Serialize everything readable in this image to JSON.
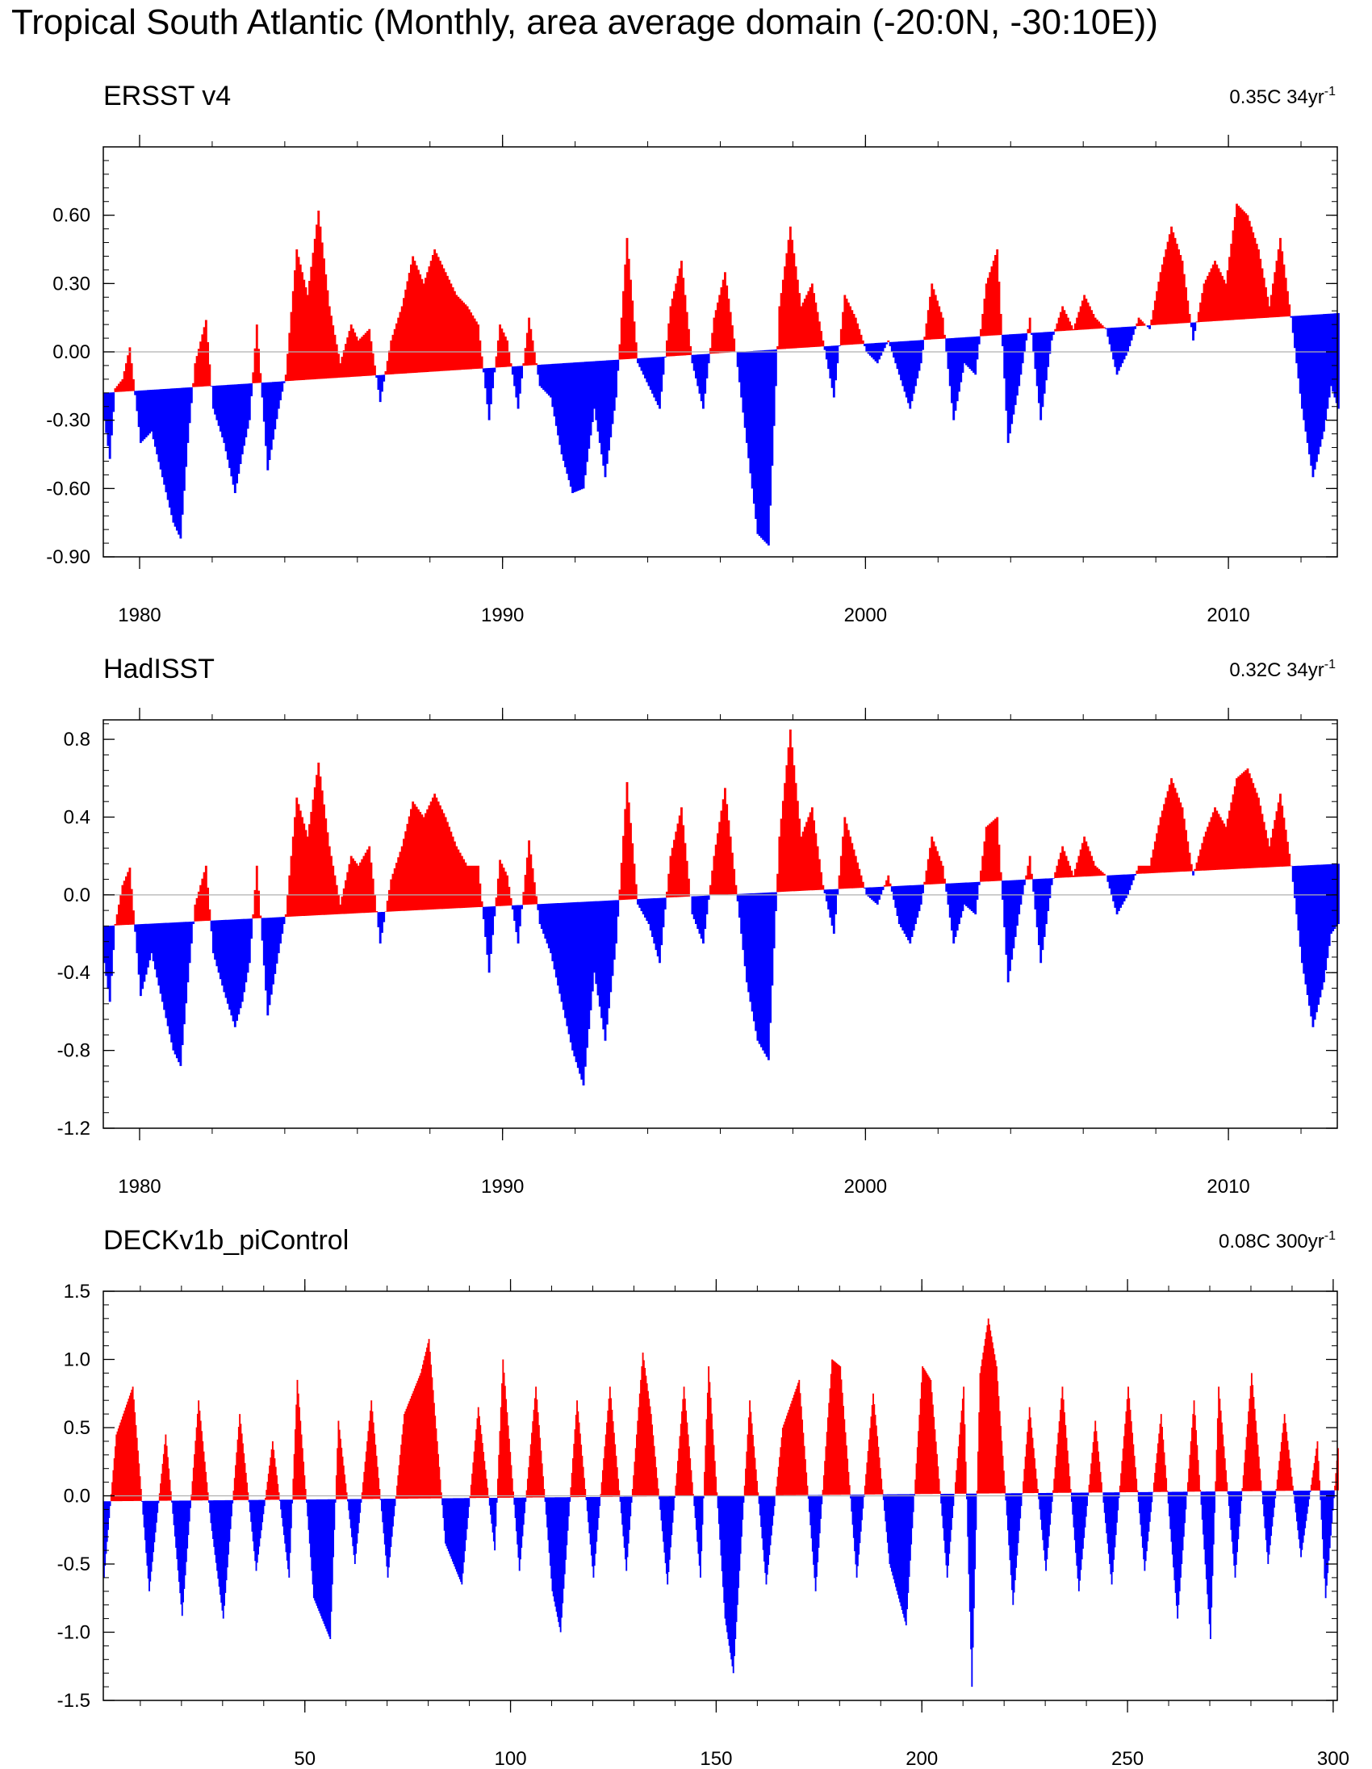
{
  "figure": {
    "title": "Tropical South Atlantic (Monthly, area average domain (-20:0N, -30:10E))",
    "positive_color": "#ff0000",
    "negative_color": "#0000ff",
    "zero_line_color": "#b0b0b0"
  },
  "chart_data": [
    {
      "type": "area",
      "title": "ERSST v4",
      "trend_value": "0.35C",
      "trend_period": "34yr",
      "trend_exponent": "-1",
      "xlim": [
        1979.0,
        2013.0
      ],
      "ylim": [
        -0.9,
        0.9
      ],
      "x_ticks": [
        1980,
        1990,
        2000,
        2010
      ],
      "x_tick_labels": [
        "1980",
        "1990",
        "2000",
        "2010"
      ],
      "y_ticks": [
        0.6,
        0.3,
        0.0,
        -0.3,
        -0.6,
        -0.9
      ],
      "y_tick_labels": [
        "0.60",
        "0.30",
        "0.00",
        "-0.30",
        "-0.60",
        "-0.90"
      ],
      "trend_line": {
        "x": [
          1979.0,
          2013.0
        ],
        "y": [
          -0.18,
          0.17
        ]
      },
      "series": {
        "x": [
          1979.0,
          1979.15,
          1979.3,
          1979.5,
          1979.7,
          1980.0,
          1980.3,
          1980.6,
          1980.9,
          1981.1,
          1981.3,
          1981.5,
          1981.8,
          1982.0,
          1982.3,
          1982.6,
          1982.8,
          1983.0,
          1983.2,
          1983.5,
          1983.8,
          1984.0,
          1984.3,
          1984.6,
          1984.9,
          1985.2,
          1985.5,
          1985.8,
          1986.0,
          1986.3,
          1986.6,
          1986.9,
          1987.2,
          1987.5,
          1987.8,
          1988.1,
          1988.4,
          1988.7,
          1989.0,
          1989.3,
          1989.6,
          1989.9,
          1990.1,
          1990.4,
          1990.7,
          1991.0,
          1991.3,
          1991.6,
          1991.9,
          1992.2,
          1992.5,
          1992.8,
          1993.1,
          1993.4,
          1993.7,
          1994.0,
          1994.3,
          1994.6,
          1994.9,
          1995.2,
          1995.5,
          1995.8,
          1996.1,
          1996.4,
          1996.7,
          1997.0,
          1997.3,
          1997.6,
          1997.9,
          1998.2,
          1998.5,
          1998.8,
          1999.1,
          1999.4,
          1999.7,
          2000.0,
          2000.3,
          2000.6,
          2000.9,
          2001.2,
          2001.5,
          2001.8,
          2002.1,
          2002.4,
          2002.7,
          2003.0,
          2003.3,
          2003.6,
          2003.9,
          2004.2,
          2004.5,
          2004.8,
          2005.1,
          2005.4,
          2005.7,
          2006.0,
          2006.3,
          2006.6,
          2006.9,
          2007.2,
          2007.5,
          2007.8,
          2008.1,
          2008.4,
          2008.7,
          2009.0,
          2009.3,
          2009.6,
          2009.9,
          2010.2,
          2010.5,
          2010.8,
          2011.1,
          2011.4,
          2011.7,
          2012.0,
          2012.3,
          2012.6,
          2012.8,
          2013.0
        ],
        "y": [
          -0.3,
          -0.47,
          -0.16,
          -0.12,
          0.02,
          -0.4,
          -0.35,
          -0.55,
          -0.75,
          -0.82,
          -0.4,
          -0.05,
          0.14,
          -0.25,
          -0.4,
          -0.62,
          -0.45,
          -0.3,
          0.12,
          -0.52,
          -0.25,
          -0.1,
          0.45,
          0.25,
          0.62,
          0.2,
          -0.05,
          0.12,
          0.05,
          0.1,
          -0.22,
          0.05,
          0.2,
          0.42,
          0.3,
          0.45,
          0.35,
          0.25,
          0.2,
          0.12,
          -0.3,
          0.12,
          0.05,
          -0.25,
          0.15,
          -0.15,
          -0.2,
          -0.45,
          -0.62,
          -0.6,
          -0.25,
          -0.55,
          -0.2,
          0.5,
          -0.05,
          -0.15,
          -0.25,
          0.2,
          0.4,
          -0.05,
          -0.25,
          0.15,
          0.35,
          0.0,
          -0.4,
          -0.8,
          -0.85,
          0.2,
          0.55,
          0.2,
          0.3,
          0.05,
          -0.2,
          0.25,
          0.15,
          0.0,
          -0.05,
          0.05,
          -0.1,
          -0.25,
          -0.05,
          0.3,
          0.15,
          -0.3,
          -0.05,
          -0.1,
          0.3,
          0.45,
          -0.4,
          -0.15,
          0.15,
          -0.3,
          0.05,
          0.2,
          0.1,
          0.25,
          0.15,
          0.1,
          -0.1,
          0.0,
          0.15,
          0.1,
          0.35,
          0.55,
          0.4,
          0.05,
          0.3,
          0.4,
          0.3,
          0.65,
          0.6,
          0.45,
          0.2,
          0.5,
          0.15,
          -0.25,
          -0.55,
          -0.35,
          -0.15,
          -0.25
        ]
      }
    },
    {
      "type": "area",
      "title": "HadISST",
      "trend_value": "0.32C",
      "trend_period": "34yr",
      "trend_exponent": "-1",
      "xlim": [
        1979.0,
        2013.0
      ],
      "ylim": [
        -1.2,
        0.9
      ],
      "x_ticks": [
        1980,
        1990,
        2000,
        2010
      ],
      "x_tick_labels": [
        "1980",
        "1990",
        "2000",
        "2010"
      ],
      "y_ticks": [
        0.8,
        0.4,
        0.0,
        -0.4,
        -0.8,
        -1.2
      ],
      "y_tick_labels": [
        "0.8",
        "0.4",
        "0.0",
        "-0.4",
        "-0.8",
        "-1.2"
      ],
      "trend_line": {
        "x": [
          1979.0,
          2013.0
        ],
        "y": [
          -0.16,
          0.16
        ]
      },
      "series": {
        "x": [
          1979.0,
          1979.15,
          1979.3,
          1979.5,
          1979.7,
          1980.0,
          1980.3,
          1980.6,
          1980.9,
          1981.1,
          1981.3,
          1981.5,
          1981.8,
          1982.0,
          1982.3,
          1982.6,
          1982.8,
          1983.0,
          1983.2,
          1983.5,
          1983.8,
          1984.0,
          1984.3,
          1984.6,
          1984.9,
          1985.2,
          1985.5,
          1985.8,
          1986.0,
          1986.3,
          1986.6,
          1986.9,
          1987.2,
          1987.5,
          1987.8,
          1988.1,
          1988.4,
          1988.7,
          1989.0,
          1989.3,
          1989.6,
          1989.9,
          1990.1,
          1990.4,
          1990.7,
          1991.0,
          1991.3,
          1991.6,
          1991.9,
          1992.2,
          1992.5,
          1992.8,
          1993.1,
          1993.4,
          1993.7,
          1994.0,
          1994.3,
          1994.6,
          1994.9,
          1995.2,
          1995.5,
          1995.8,
          1996.1,
          1996.4,
          1996.7,
          1997.0,
          1997.3,
          1997.6,
          1997.9,
          1998.2,
          1998.5,
          1998.8,
          1999.1,
          1999.4,
          1999.7,
          2000.0,
          2000.3,
          2000.6,
          2000.9,
          2001.2,
          2001.5,
          2001.8,
          2002.1,
          2002.4,
          2002.7,
          2003.0,
          2003.3,
          2003.6,
          2003.9,
          2004.2,
          2004.5,
          2004.8,
          2005.1,
          2005.4,
          2005.7,
          2006.0,
          2006.3,
          2006.6,
          2006.9,
          2007.2,
          2007.5,
          2007.8,
          2008.1,
          2008.4,
          2008.7,
          2009.0,
          2009.3,
          2009.6,
          2009.9,
          2010.2,
          2010.5,
          2010.8,
          2011.1,
          2011.4,
          2011.7,
          2012.0,
          2012.3,
          2012.6,
          2012.8,
          2013.0
        ],
        "y": [
          -0.35,
          -0.55,
          -0.15,
          0.05,
          0.14,
          -0.52,
          -0.3,
          -0.55,
          -0.8,
          -0.88,
          -0.45,
          -0.05,
          0.15,
          -0.3,
          -0.5,
          -0.68,
          -0.55,
          -0.35,
          0.15,
          -0.62,
          -0.3,
          -0.1,
          0.5,
          0.3,
          0.68,
          0.25,
          -0.05,
          0.2,
          0.15,
          0.25,
          -0.25,
          0.08,
          0.25,
          0.48,
          0.4,
          0.52,
          0.4,
          0.25,
          0.15,
          0.15,
          -0.4,
          0.18,
          0.1,
          -0.25,
          0.28,
          -0.15,
          -0.3,
          -0.55,
          -0.8,
          -0.98,
          -0.4,
          -0.75,
          -0.25,
          0.58,
          -0.05,
          -0.15,
          -0.35,
          0.2,
          0.45,
          -0.1,
          -0.25,
          0.2,
          0.55,
          0.05,
          -0.45,
          -0.75,
          -0.85,
          0.3,
          0.85,
          0.3,
          0.45,
          0.05,
          -0.2,
          0.4,
          0.2,
          0.0,
          -0.05,
          0.1,
          -0.15,
          -0.25,
          -0.05,
          0.3,
          0.15,
          -0.25,
          -0.05,
          -0.1,
          0.35,
          0.4,
          -0.45,
          -0.1,
          0.2,
          -0.35,
          0.05,
          0.25,
          0.1,
          0.3,
          0.15,
          0.1,
          -0.1,
          0.0,
          0.15,
          0.15,
          0.4,
          0.6,
          0.45,
          0.1,
          0.3,
          0.45,
          0.35,
          0.6,
          0.65,
          0.5,
          0.25,
          0.52,
          0.15,
          -0.35,
          -0.68,
          -0.45,
          -0.2,
          -0.15
        ]
      }
    },
    {
      "type": "area",
      "title": "DECKv1b_piControl",
      "trend_value": "0.08C",
      "trend_period": "300yr",
      "trend_exponent": "-1",
      "xlim": [
        1,
        301
      ],
      "ylim": [
        -1.5,
        1.5
      ],
      "x_ticks": [
        50,
        100,
        150,
        200,
        250,
        300
      ],
      "x_tick_labels": [
        "50",
        "100",
        "150",
        "200",
        "250",
        "300"
      ],
      "y_ticks": [
        1.5,
        1.0,
        0.5,
        0.0,
        -0.5,
        -1.0,
        -1.5
      ],
      "y_tick_labels": [
        "1.5",
        "1.0",
        "0.5",
        "0.0",
        "-0.5",
        "-1.0",
        "-1.5"
      ],
      "trend_line": {
        "x": [
          1,
          301
        ],
        "y": [
          -0.04,
          0.04
        ]
      },
      "series": {
        "x": [
          1,
          4,
          8,
          12,
          16,
          20,
          24,
          27,
          30,
          34,
          38,
          42,
          46,
          48,
          52,
          56,
          58,
          62,
          66,
          70,
          74,
          78,
          80,
          84,
          88,
          92,
          96,
          98,
          102,
          106,
          110,
          112,
          116,
          120,
          124,
          128,
          132,
          134,
          138,
          142,
          146,
          148,
          152,
          154,
          158,
          162,
          166,
          170,
          174,
          178,
          180,
          184,
          188,
          192,
          196,
          200,
          202,
          206,
          210,
          212,
          214,
          216,
          218,
          222,
          226,
          230,
          234,
          238,
          242,
          246,
          250,
          254,
          258,
          262,
          266,
          270,
          272,
          276,
          280,
          284,
          288,
          292,
          296,
          298,
          301
        ],
        "y": [
          -0.6,
          0.45,
          0.8,
          -0.7,
          0.45,
          -0.88,
          0.7,
          -0.2,
          -0.9,
          0.6,
          -0.55,
          0.4,
          -0.6,
          0.85,
          -0.75,
          -1.05,
          0.55,
          -0.5,
          0.7,
          -0.6,
          0.6,
          0.9,
          1.15,
          -0.35,
          -0.65,
          0.65,
          -0.4,
          1.0,
          -0.55,
          0.8,
          -0.7,
          -1.0,
          0.7,
          -0.6,
          0.8,
          -0.55,
          1.05,
          0.6,
          -0.65,
          0.8,
          -0.6,
          0.95,
          -0.9,
          -1.3,
          0.7,
          -0.65,
          0.5,
          0.85,
          -0.7,
          1.0,
          0.95,
          -0.6,
          0.75,
          -0.5,
          -0.95,
          0.95,
          0.85,
          -0.6,
          0.8,
          -1.4,
          0.9,
          1.3,
          0.95,
          -0.8,
          0.65,
          -0.55,
          0.8,
          -0.7,
          0.55,
          -0.65,
          0.8,
          -0.55,
          0.6,
          -0.9,
          0.7,
          -1.05,
          0.8,
          -0.6,
          0.9,
          -0.5,
          0.6,
          -0.45,
          0.4,
          -0.75,
          0.35
        ]
      }
    }
  ]
}
